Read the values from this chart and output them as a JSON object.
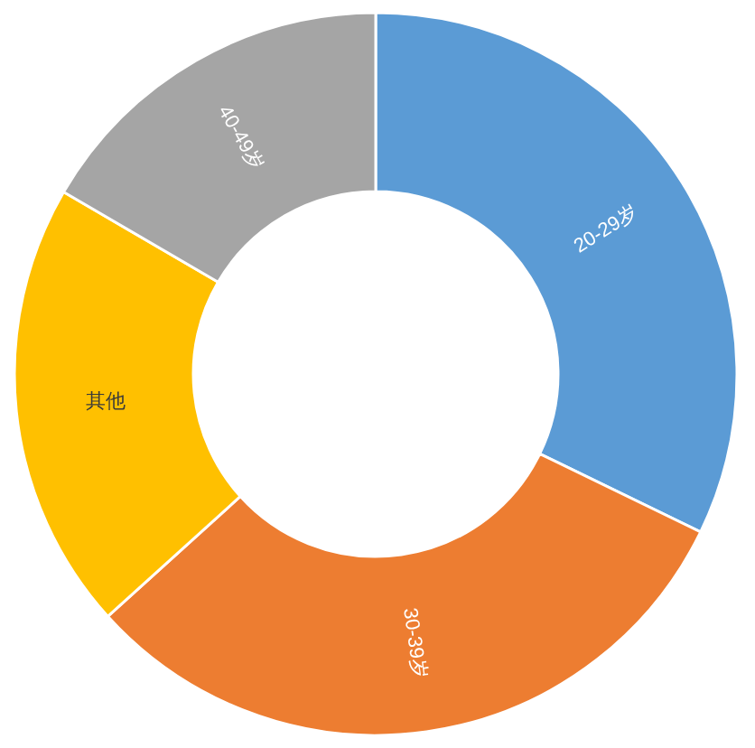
{
  "chart_data": {
    "type": "donut",
    "categories": [
      "20-29岁",
      "30-39岁",
      "其他",
      "40-49岁"
    ],
    "values": [
      32.2,
      31.1,
      20.1,
      16.6
    ],
    "colors": [
      "#5b9bd5",
      "#ed7d31",
      "#ffc000",
      "#a5a5a5"
    ]
  }
}
